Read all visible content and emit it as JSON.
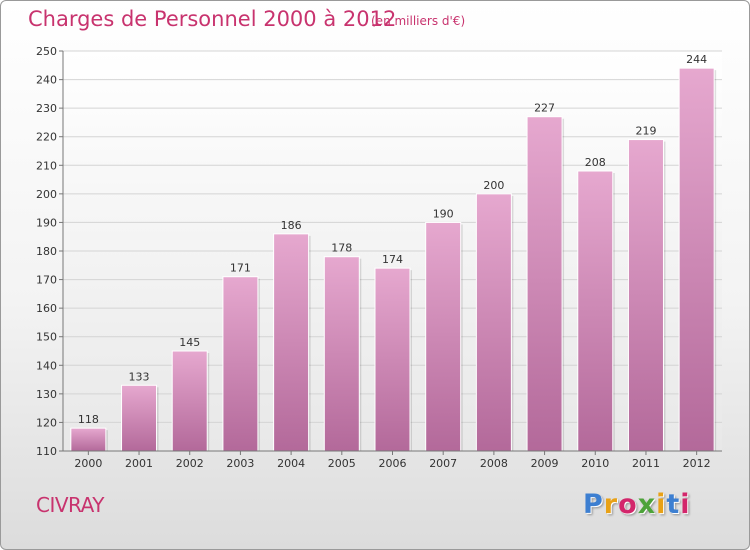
{
  "title": "Charges de Personnel 2000 à 2012",
  "unit_note": "(en milliers d'€)",
  "city": "CIVRAY",
  "logo": {
    "letters": [
      "P",
      "r",
      "o",
      "x",
      "i",
      "t",
      "i"
    ],
    "colors": [
      "#3d7fd1",
      "#e8a116",
      "#d3266b",
      "#4da33a",
      "#e8a116",
      "#3d7fd1",
      "#d3266b"
    ]
  },
  "colors": {
    "bar_top": "#e6a8cf",
    "bar_bottom": "#b3699a",
    "text_accent": "#c8336e"
  },
  "chart_data": {
    "type": "bar",
    "title": "Charges de Personnel 2000 à 2012",
    "categories": [
      "2000",
      "2001",
      "2002",
      "2003",
      "2004",
      "2005",
      "2006",
      "2007",
      "2008",
      "2009",
      "2010",
      "2011",
      "2012"
    ],
    "values": [
      118,
      133,
      145,
      171,
      186,
      178,
      174,
      190,
      200,
      227,
      208,
      219,
      244
    ],
    "ylim": [
      110,
      250
    ],
    "yticks": [
      110,
      120,
      130,
      140,
      150,
      160,
      170,
      180,
      190,
      200,
      210,
      220,
      230,
      240,
      250
    ],
    "grid": true,
    "legend": "none"
  }
}
